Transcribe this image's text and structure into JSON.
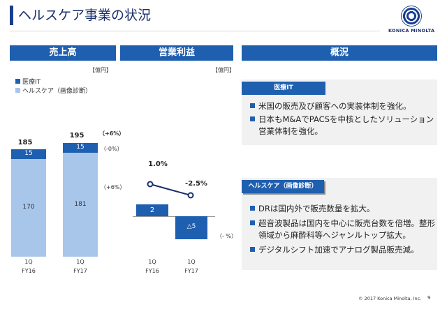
{
  "header": {
    "title": "ヘルスケア事業の状況",
    "logo_text": "KONICA MINOLTA"
  },
  "sections": {
    "sales": "売上高",
    "profit": "営業利益",
    "overview": "概況"
  },
  "sales_chart": {
    "unit": "【億円】",
    "legend": [
      {
        "label": "医療IT",
        "color": "#1f5fb0"
      },
      {
        "label": "ヘルスケア（画像診断）",
        "color": "#a8c6ea"
      }
    ],
    "totals": [
      "185",
      "195"
    ],
    "it_values": [
      "15",
      "15"
    ],
    "hc_values": [
      "170",
      "181"
    ],
    "growth_total": "（+6%）",
    "growth_it": "（-0%）",
    "growth_hc": "（+6%）",
    "x_quarter": [
      "1Q",
      "1Q"
    ],
    "x_fy": [
      "FY16",
      "FY17"
    ]
  },
  "profit_chart": {
    "unit": "【億円】",
    "margins": [
      "1.0%",
      "-2.5%"
    ],
    "values": [
      "2",
      "△5"
    ],
    "change": "（- %）",
    "x_quarter": [
      "1Q",
      "1Q"
    ],
    "x_fy": [
      "FY16",
      "FY17"
    ]
  },
  "overview": {
    "it_head": "医療IT",
    "it_bullets": [
      "米国の販売及び顧客への実装体制を強化。",
      "日本もM&AでPACSを中核としたソリューション営業体制を強化。"
    ],
    "hc_head": "ヘルスケア（画像診断）",
    "hc_bullets": [
      "DRは国内外で販売数量を拡大。",
      "超音波製品は国内を中心に販売台数を倍増。整形領域から麻酔科等へジャンルトップ拡大。",
      "デジタルシフト加速でアナログ製品販売減。"
    ]
  },
  "chart_data": [
    {
      "type": "bar",
      "categories": [
        "1Q FY16",
        "1Q FY17"
      ],
      "series": [
        {
          "name": "ヘルスケア（画像診断）",
          "values": [
            170,
            181
          ]
        },
        {
          "name": "医療IT",
          "values": [
            15,
            15
          ]
        }
      ],
      "totals": [
        185,
        195
      ]
    },
    {
      "type": "bar",
      "categories": [
        "1Q FY16",
        "1Q FY17"
      ],
      "values": [
        2,
        -5
      ],
      "margin_line": [
        1.0,
        -2.5
      ]
    }
  ],
  "footer": {
    "copyright": "© 2017 Konica Minolta, Inc.",
    "page": "9"
  }
}
